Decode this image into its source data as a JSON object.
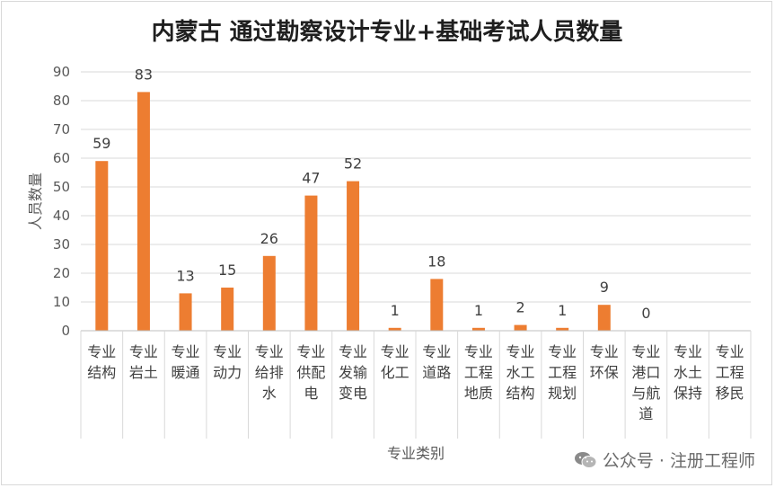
{
  "chart_data": {
    "type": "bar",
    "title": "内蒙古 通过勘察设计专业+基础考试人员数量",
    "xlabel": "专业类别",
    "ylabel": "人员数量",
    "ylim": [
      0,
      90
    ],
    "yticks": [
      0,
      10,
      20,
      30,
      40,
      50,
      60,
      70,
      80,
      90
    ],
    "grid": true,
    "bar_color": "#ed7d31",
    "categories": [
      [
        "专业",
        "结构"
      ],
      [
        "专业",
        "岩土"
      ],
      [
        "专业",
        "暖通"
      ],
      [
        "专业",
        "动力"
      ],
      [
        "专业",
        "给排",
        "水"
      ],
      [
        "专业",
        "供配",
        "电"
      ],
      [
        "专业",
        "发输",
        "变电"
      ],
      [
        "专业",
        "化工"
      ],
      [
        "专业",
        "道路"
      ],
      [
        "专业",
        "工程",
        "地质"
      ],
      [
        "专业",
        "水工",
        "结构"
      ],
      [
        "专业",
        "工程",
        "规划"
      ],
      [
        "专业",
        "环保"
      ],
      [
        "专业",
        "港口",
        "与航",
        "道"
      ],
      [
        "专业",
        "水土",
        "保持"
      ],
      [
        "专业",
        "工程",
        "移民"
      ]
    ],
    "values": [
      59,
      83,
      13,
      15,
      26,
      47,
      52,
      1,
      18,
      1,
      2,
      1,
      9,
      0,
      null,
      null
    ],
    "data_labels": [
      "59",
      "83",
      "13",
      "15",
      "26",
      "47",
      "52",
      "1",
      "18",
      "1",
      "2",
      "1",
      "9",
      "0",
      "",
      ""
    ]
  },
  "watermark": {
    "text": "公众号 · 注册工程师",
    "icon": "wechat-icon"
  }
}
